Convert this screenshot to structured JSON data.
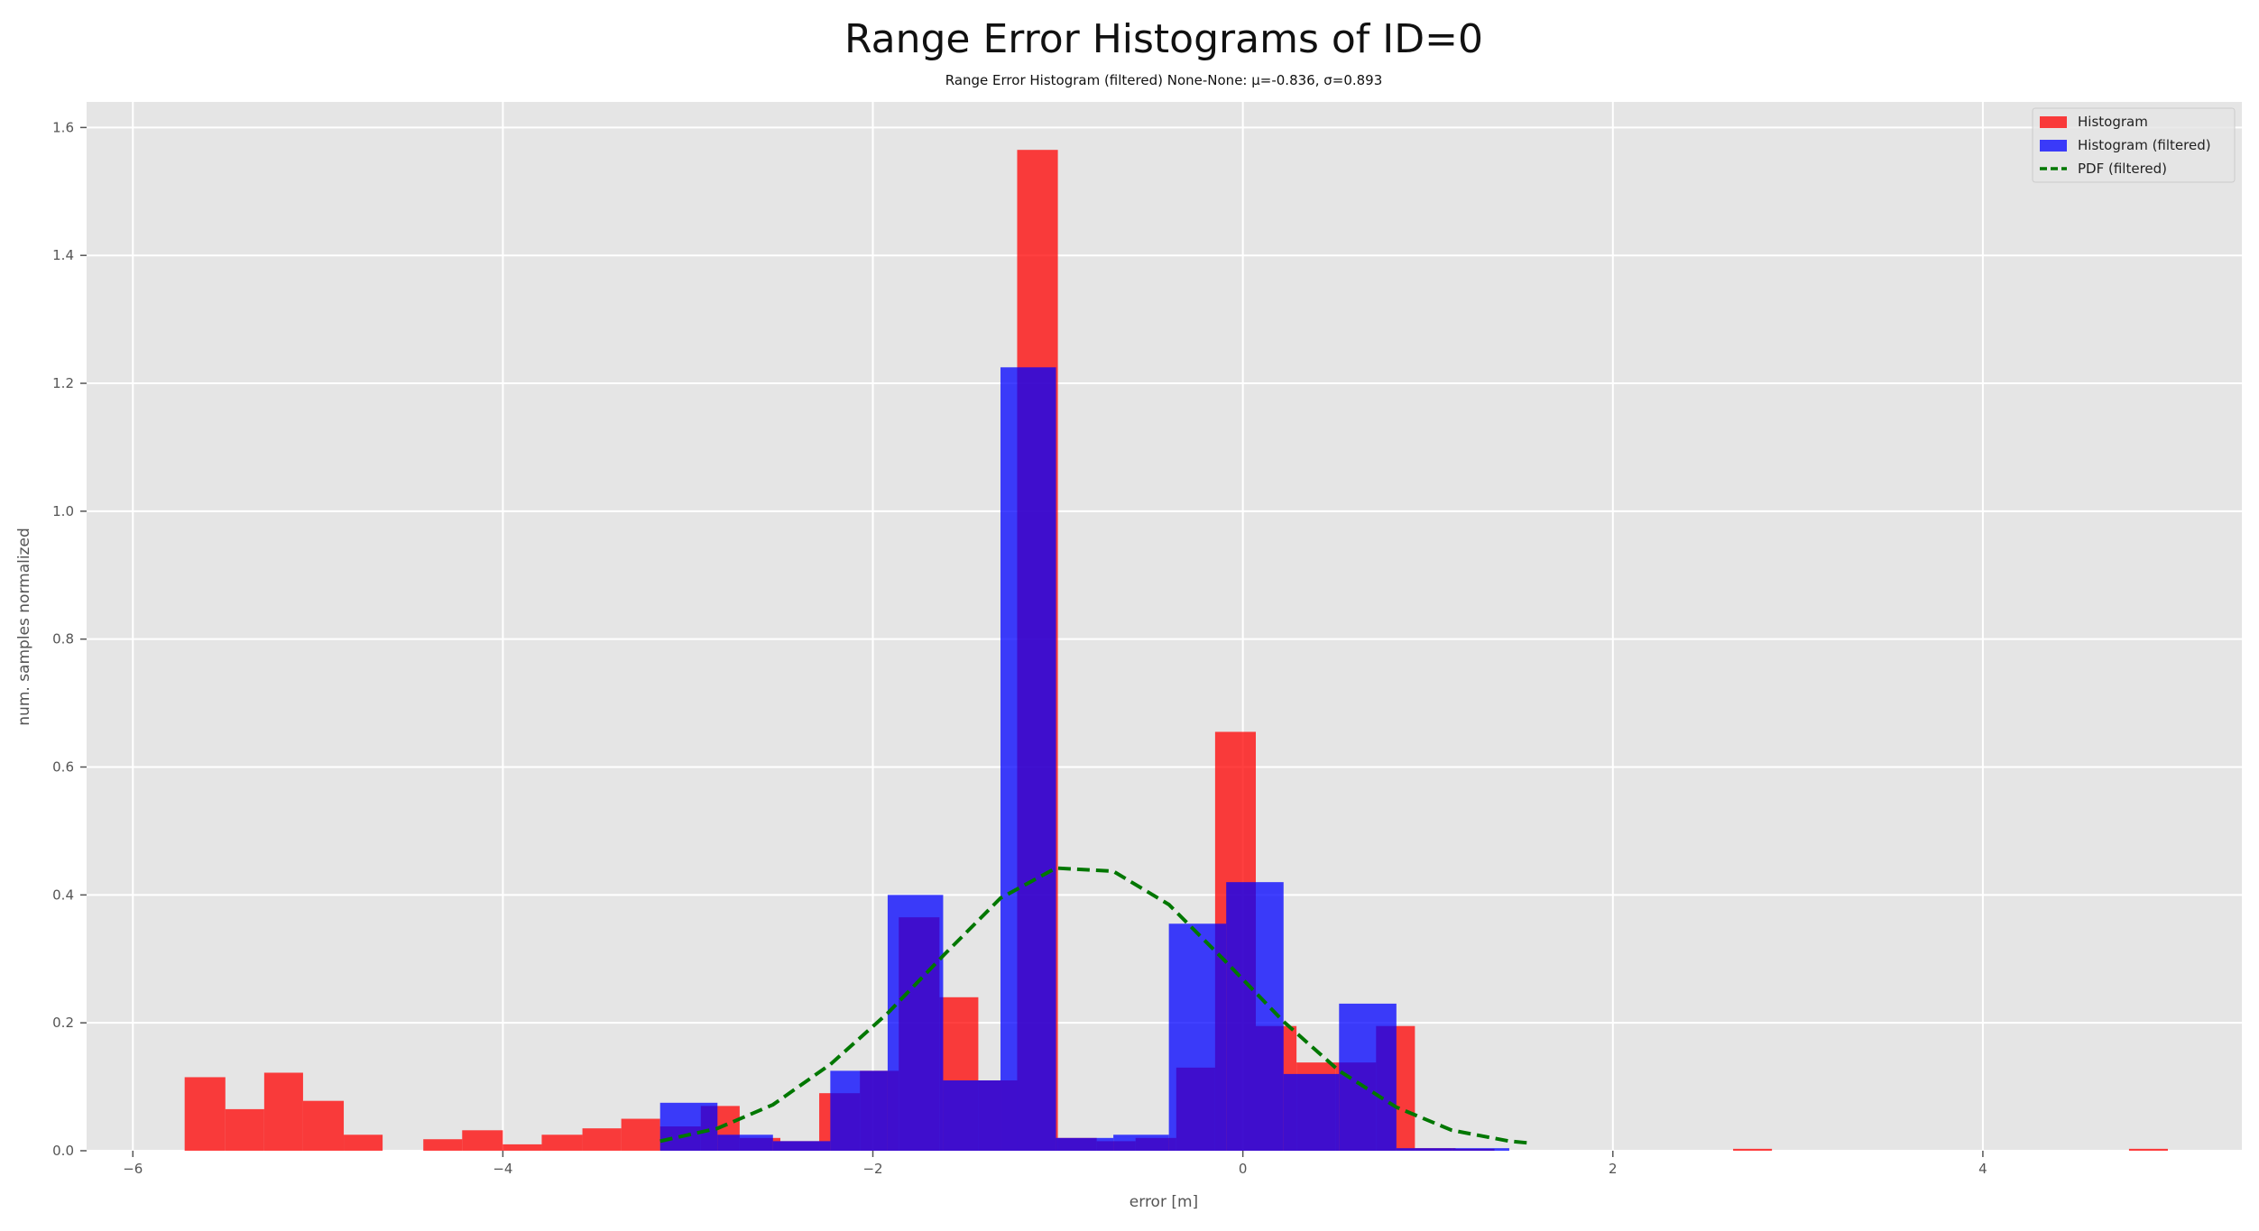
{
  "chart_data": {
    "type": "bar",
    "title": "Range Error Histograms of ID=0",
    "subtitle": "Range Error Histogram (filtered) None-None: μ=-0.836, σ=0.893",
    "xlabel": "error [m]",
    "ylabel": "num. samples normalized",
    "xlim": [
      -6.25,
      5.4
    ],
    "ylim": [
      0,
      1.64
    ],
    "x_ticks": [
      -6,
      -4,
      -2,
      0,
      2,
      4
    ],
    "x_tick_labels": [
      "−6",
      "−4",
      "−2",
      "0",
      "2",
      "4"
    ],
    "y_ticks": [
      0.0,
      0.2,
      0.4,
      0.6,
      0.8,
      1.0,
      1.2,
      1.4,
      1.6
    ],
    "y_tick_labels": [
      "0.0",
      "0.2",
      "0.4",
      "0.6",
      "0.8",
      "1.0",
      "1.2",
      "1.4",
      "1.6"
    ],
    "grid": true,
    "background": "#e5e5e5",
    "legend_position": "top-right",
    "legend": [
      {
        "label": "Histogram",
        "kind": "patch",
        "color": "#ff0000"
      },
      {
        "label": "Histogram (filtered)",
        "kind": "patch",
        "color": "#0000ff"
      },
      {
        "label": "PDF (filtered)",
        "kind": "dashed-line",
        "color": "#007700"
      }
    ],
    "series": [
      {
        "name": "Histogram",
        "color": "#ff0000",
        "opacity": 0.75,
        "bins": [
          {
            "x0": -5.72,
            "x1": -5.5,
            "value": 0.115
          },
          {
            "x0": -5.5,
            "x1": -5.29,
            "value": 0.065
          },
          {
            "x0": -5.29,
            "x1": -5.08,
            "value": 0.122
          },
          {
            "x0": -5.08,
            "x1": -4.86,
            "value": 0.078
          },
          {
            "x0": -4.86,
            "x1": -4.65,
            "value": 0.025
          },
          {
            "x0": -4.43,
            "x1": -4.22,
            "value": 0.018
          },
          {
            "x0": -4.22,
            "x1": -4.0,
            "value": 0.032
          },
          {
            "x0": -4.0,
            "x1": -3.79,
            "value": 0.01
          },
          {
            "x0": -3.79,
            "x1": -3.57,
            "value": 0.025
          },
          {
            "x0": -3.57,
            "x1": -3.36,
            "value": 0.035
          },
          {
            "x0": -3.36,
            "x1": -3.15,
            "value": 0.05
          },
          {
            "x0": -3.15,
            "x1": -2.93,
            "value": 0.038
          },
          {
            "x0": -2.93,
            "x1": -2.72,
            "value": 0.07
          },
          {
            "x0": -2.72,
            "x1": -2.5,
            "value": 0.02
          },
          {
            "x0": -2.5,
            "x1": -2.29,
            "value": 0.015
          },
          {
            "x0": -2.29,
            "x1": -2.07,
            "value": 0.09
          },
          {
            "x0": -2.07,
            "x1": -1.86,
            "value": 0.125
          },
          {
            "x0": -1.86,
            "x1": -1.64,
            "value": 0.365
          },
          {
            "x0": -1.64,
            "x1": -1.43,
            "value": 0.24
          },
          {
            "x0": -1.43,
            "x1": -1.22,
            "value": 0.11
          },
          {
            "x0": -1.22,
            "x1": -1.0,
            "value": 1.565
          },
          {
            "x0": -1.0,
            "x1": -0.79,
            "value": 0.02
          },
          {
            "x0": -0.79,
            "x1": -0.58,
            "value": 0.015
          },
          {
            "x0": -0.58,
            "x1": -0.36,
            "value": 0.02
          },
          {
            "x0": -0.36,
            "x1": -0.15,
            "value": 0.13
          },
          {
            "x0": -0.15,
            "x1": 0.07,
            "value": 0.655
          },
          {
            "x0": 0.07,
            "x1": 0.29,
            "value": 0.195
          },
          {
            "x0": 0.29,
            "x1": 0.5,
            "value": 0.138
          },
          {
            "x0": 0.5,
            "x1": 0.72,
            "value": 0.138
          },
          {
            "x0": 0.72,
            "x1": 0.93,
            "value": 0.195
          },
          {
            "x0": 0.93,
            "x1": 1.15,
            "value": 0.004
          },
          {
            "x0": 1.15,
            "x1": 1.36,
            "value": 0.003
          },
          {
            "x0": 2.65,
            "x1": 2.86,
            "value": 0.003
          },
          {
            "x0": 4.79,
            "x1": 5.0,
            "value": 0.003
          }
        ]
      },
      {
        "name": "Histogram (filtered)",
        "color": "#0000ff",
        "opacity": 0.75,
        "bins": [
          {
            "x0": -3.15,
            "x1": -2.84,
            "value": 0.075
          },
          {
            "x0": -2.84,
            "x1": -2.54,
            "value": 0.025
          },
          {
            "x0": -2.54,
            "x1": -2.23,
            "value": 0.015
          },
          {
            "x0": -2.23,
            "x1": -1.92,
            "value": 0.125
          },
          {
            "x0": -1.92,
            "x1": -1.62,
            "value": 0.4
          },
          {
            "x0": -1.62,
            "x1": -1.31,
            "value": 0.11
          },
          {
            "x0": -1.31,
            "x1": -1.01,
            "value": 1.225
          },
          {
            "x0": -1.01,
            "x1": -0.7,
            "value": 0.02
          },
          {
            "x0": -0.7,
            "x1": -0.4,
            "value": 0.025
          },
          {
            "x0": -0.4,
            "x1": -0.09,
            "value": 0.355
          },
          {
            "x0": -0.09,
            "x1": 0.22,
            "value": 0.42
          },
          {
            "x0": 0.22,
            "x1": 0.52,
            "value": 0.12
          },
          {
            "x0": 0.52,
            "x1": 0.83,
            "value": 0.23
          },
          {
            "x0": 0.83,
            "x1": 1.13,
            "value": 0.004
          },
          {
            "x0": 1.13,
            "x1": 1.44,
            "value": 0.004
          }
        ]
      },
      {
        "name": "PDF (filtered)",
        "color": "#007700",
        "style": "dashed",
        "points": [
          [
            -3.15,
            0.015
          ],
          [
            -2.84,
            0.035
          ],
          [
            -2.54,
            0.072
          ],
          [
            -2.23,
            0.135
          ],
          [
            -1.92,
            0.215
          ],
          [
            -1.62,
            0.305
          ],
          [
            -1.31,
            0.395
          ],
          [
            -1.01,
            0.442
          ],
          [
            -0.7,
            0.437
          ],
          [
            -0.4,
            0.385
          ],
          [
            -0.09,
            0.295
          ],
          [
            0.22,
            0.202
          ],
          [
            0.52,
            0.125
          ],
          [
            0.83,
            0.068
          ],
          [
            1.13,
            0.032
          ],
          [
            1.44,
            0.015
          ],
          [
            1.55,
            0.012
          ]
        ]
      }
    ]
  }
}
